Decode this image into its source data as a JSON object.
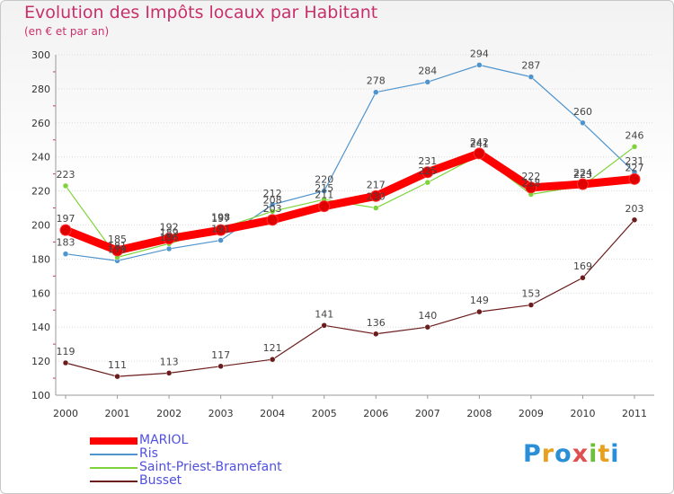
{
  "title": "Evolution des Impôts locaux par Habitant",
  "subtitle": "(en € et par an)",
  "logo_text": "Proxiti",
  "chart_data": {
    "type": "line",
    "title": "Evolution des Impôts locaux par Habitant",
    "subtitle": "(en € et par an)",
    "xlabel": "",
    "ylabel": "",
    "ylim": [
      100,
      300
    ],
    "yticks": [
      100,
      120,
      140,
      160,
      180,
      200,
      220,
      240,
      260,
      280,
      300
    ],
    "categories": [
      "2000",
      "2001",
      "2002",
      "2003",
      "2004",
      "2005",
      "2006",
      "2007",
      "2008",
      "2009",
      "2010",
      "2011"
    ],
    "grid": true,
    "legend_position": "bottom-left",
    "series": [
      {
        "name": "MARIOL",
        "color": "#ff0000",
        "values": [
          197,
          185,
          192,
          197,
          203,
          211,
          217,
          231,
          242,
          222,
          224,
          227
        ]
      },
      {
        "name": "Ris",
        "color": "#4f94cd",
        "values": [
          183,
          179,
          186,
          191,
          212,
          220,
          278,
          284,
          294,
          287,
          260,
          231
        ]
      },
      {
        "name": "Saint-Priest-Bramefant",
        "color": "#7fd33a",
        "values": [
          223,
          181,
          189,
          198,
          208,
          215,
          210,
          225,
          241,
          218,
          223,
          246
        ]
      },
      {
        "name": "Busset",
        "color": "#6b1c1c",
        "values": [
          119,
          111,
          113,
          117,
          121,
          141,
          136,
          140,
          149,
          153,
          169,
          203
        ]
      }
    ]
  }
}
